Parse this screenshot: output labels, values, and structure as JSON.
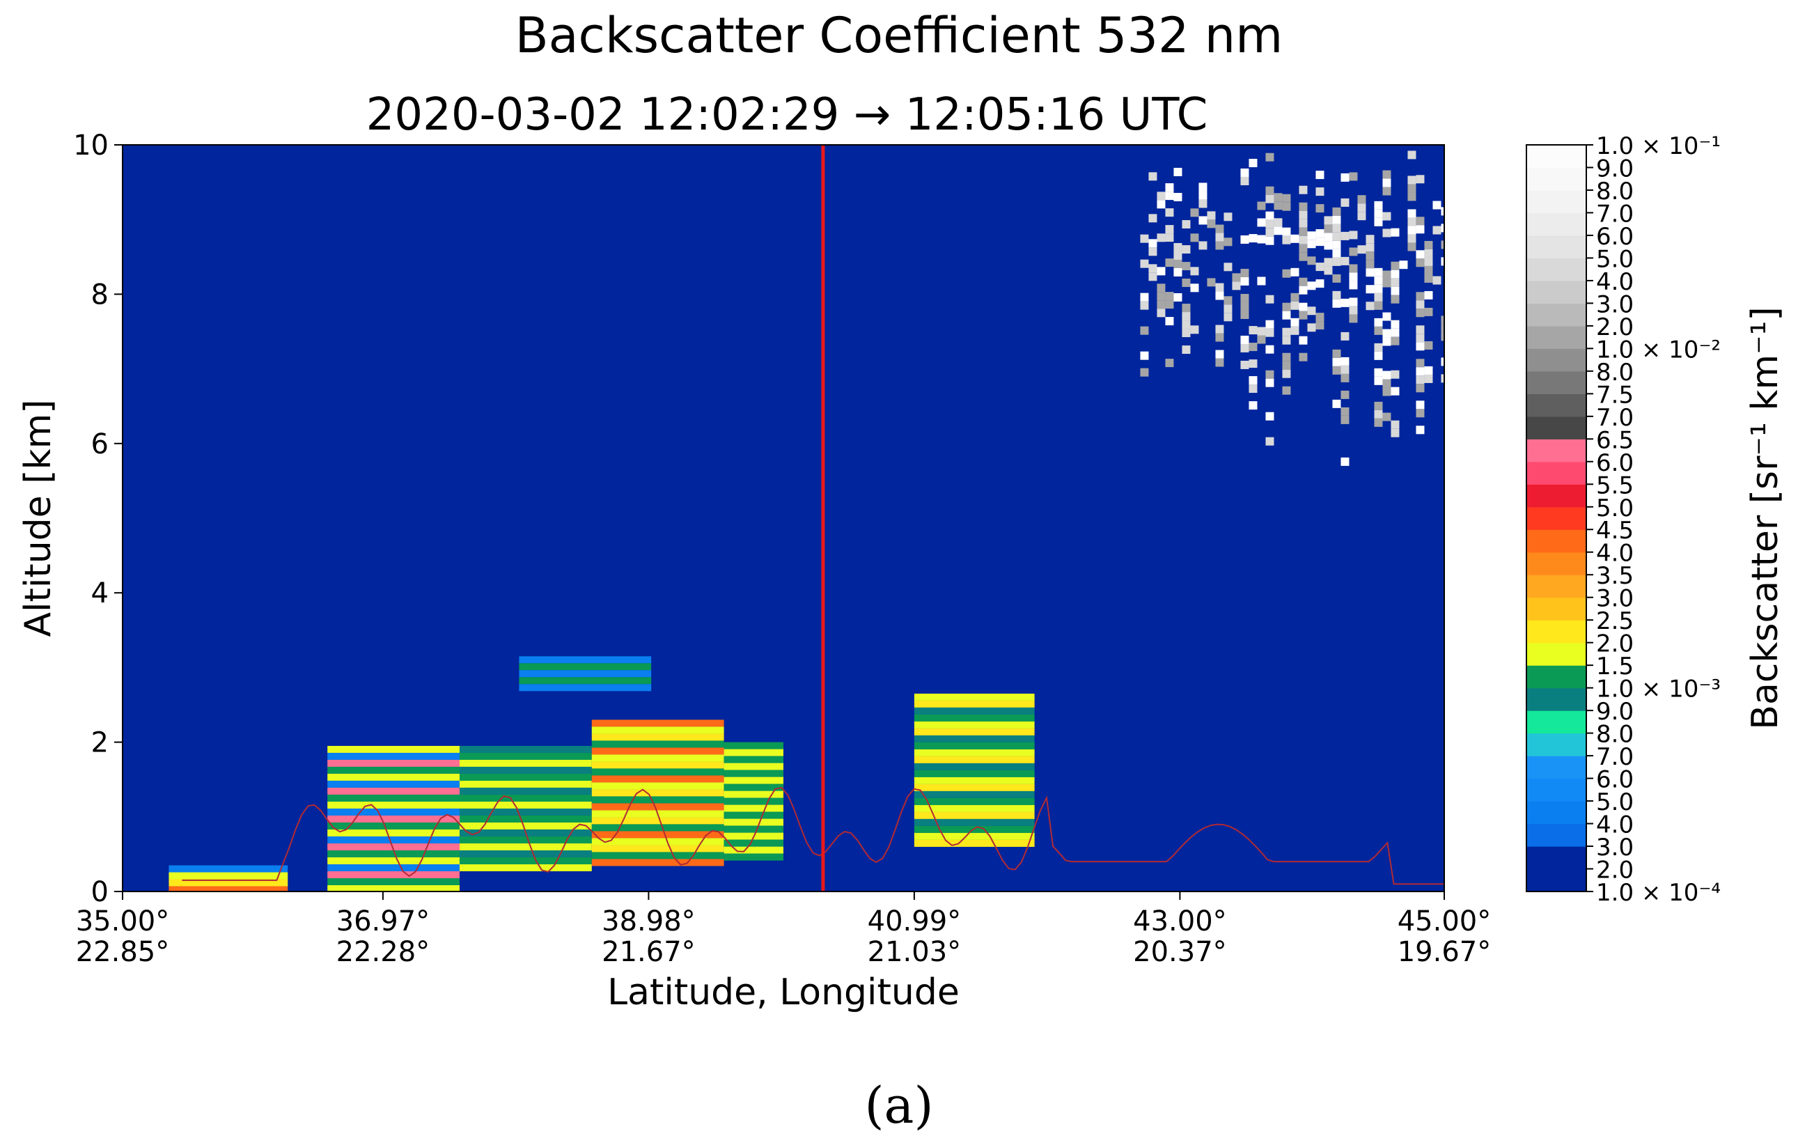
{
  "chart_data": {
    "type": "heatmap",
    "title": "Backscatter Coefficient 532 nm",
    "subtitle": "2020-03-02 12:02:29 → 12:05:16 UTC",
    "xlabel": "Latitude, Longitude",
    "ylabel": "Altitude [km]",
    "xlim": [
      35.0,
      45.0
    ],
    "ylim": [
      0,
      10
    ],
    "x_ticks": [
      {
        "lat": 35.0,
        "label1": "35.00°",
        "label2": "22.85°"
      },
      {
        "lat": 36.97,
        "label1": "36.97°",
        "label2": "22.28°"
      },
      {
        "lat": 38.98,
        "label1": "38.98°",
        "label2": "21.67°"
      },
      {
        "lat": 40.99,
        "label1": "40.99°",
        "label2": "21.03°"
      },
      {
        "lat": 43.0,
        "label1": "43.00°",
        "label2": "20.37°"
      },
      {
        "lat": 45.0,
        "label1": "45.00°",
        "label2": "19.67°"
      }
    ],
    "y_ticks": [
      0,
      2,
      4,
      6,
      8,
      10
    ],
    "background_color": "#00259c",
    "marker_line": {
      "lat": 40.3,
      "color": "#e8181c"
    },
    "colorbar": {
      "label": "Backscatter [sr⁻¹ km⁻¹]",
      "levels": [
        {
          "label": "1.0 × 10⁻⁴",
          "color": "#00259c"
        },
        {
          "label": "2.0",
          "color": "#00259c"
        },
        {
          "label": "3.0",
          "color": "#0a6ee8"
        },
        {
          "label": "4.0",
          "color": "#0a7ff0"
        },
        {
          "label": "5.0",
          "color": "#128af5"
        },
        {
          "label": "6.0",
          "color": "#1a93f7"
        },
        {
          "label": "7.0",
          "color": "#22c5d8"
        },
        {
          "label": "8.0",
          "color": "#14e89a"
        },
        {
          "label": "9.0",
          "color": "#0a7f80"
        },
        {
          "label": "1.0 × 10⁻³",
          "color": "#0a9a55"
        },
        {
          "label": "1.5",
          "color": "#e8ff20"
        },
        {
          "label": "2.0",
          "color": "#ffe81c"
        },
        {
          "label": "2.5",
          "color": "#ffc31c"
        },
        {
          "label": "3.0",
          "color": "#ffa820"
        },
        {
          "label": "3.5",
          "color": "#ff8a1c"
        },
        {
          "label": "4.0",
          "color": "#ff6a18"
        },
        {
          "label": "4.5",
          "color": "#ff3a20"
        },
        {
          "label": "5.0",
          "color": "#ee1c30"
        },
        {
          "label": "5.5",
          "color": "#ff4a70"
        },
        {
          "label": "6.0",
          "color": "#ff6f92"
        },
        {
          "label": "6.5",
          "color": "#474747"
        },
        {
          "label": "7.0",
          "color": "#5f5f5f"
        },
        {
          "label": "7.5",
          "color": "#787878"
        },
        {
          "label": "8.0",
          "color": "#8f8f8f"
        },
        {
          "label": "1.0 × 10⁻²",
          "color": "#a6a6a6"
        },
        {
          "label": "2.0",
          "color": "#bababa"
        },
        {
          "label": "3.0",
          "color": "#cbcbcb"
        },
        {
          "label": "4.0",
          "color": "#d9d9d9"
        },
        {
          "label": "5.0",
          "color": "#e4e4e4"
        },
        {
          "label": "6.0",
          "color": "#ececec"
        },
        {
          "label": "7.0",
          "color": "#f3f3f3"
        },
        {
          "label": "8.0",
          "color": "#f8f8f8"
        },
        {
          "label": "9.0",
          "color": "#fcfcfc"
        },
        {
          "label": "1.0 × 10⁻¹",
          "color": "#ffffff"
        }
      ]
    },
    "features": [
      {
        "kind": "aerosol-layer",
        "lat": [
          35.35,
          36.25
        ],
        "alt": [
          0.0,
          0.35
        ],
        "colors": [
          "#0a7ff0",
          "#e8ff20",
          "#ffe81c",
          "#ff6a18"
        ]
      },
      {
        "kind": "aerosol-layer",
        "lat": [
          36.55,
          37.55
        ],
        "alt": [
          0.0,
          1.95
        ],
        "colors": [
          "#0a9a55",
          "#e8ff20",
          "#0a7ff0",
          "#ff6f92"
        ]
      },
      {
        "kind": "aerosol-layer",
        "lat": [
          37.55,
          38.55
        ],
        "alt": [
          0.3,
          1.95
        ],
        "colors": [
          "#0a9a55",
          "#e8ff20",
          "#0a7f80"
        ]
      },
      {
        "kind": "aerosol-layer",
        "lat": [
          38.55,
          39.55
        ],
        "alt": [
          0.4,
          2.3
        ],
        "colors": [
          "#e8ff20",
          "#ffe81c",
          "#0a9a55",
          "#ff6a18"
        ]
      },
      {
        "kind": "aerosol-layer",
        "lat": [
          39.55,
          40.0
        ],
        "alt": [
          0.5,
          2.0
        ],
        "colors": [
          "#0a9a55",
          "#e8ff20"
        ]
      },
      {
        "kind": "aerosol-layer",
        "lat": [
          40.99,
          41.9
        ],
        "alt": [
          0.6,
          2.65
        ],
        "colors": [
          "#0a9a55",
          "#e8ff20",
          "#ffe81c",
          "#0a7f80"
        ]
      },
      {
        "kind": "aerosol-layer",
        "lat": [
          38.0,
          39.0
        ],
        "alt": [
          2.7,
          3.15
        ],
        "colors": [
          "#0a7ff0",
          "#0a9a55"
        ]
      },
      {
        "kind": "ice-cloud",
        "lat": [
          42.7,
          45.0
        ],
        "alt": [
          5.5,
          10.0
        ],
        "colors": [
          "#ffffff",
          "#d9d9d9",
          "#a6a6a6"
        ]
      }
    ]
  }
}
